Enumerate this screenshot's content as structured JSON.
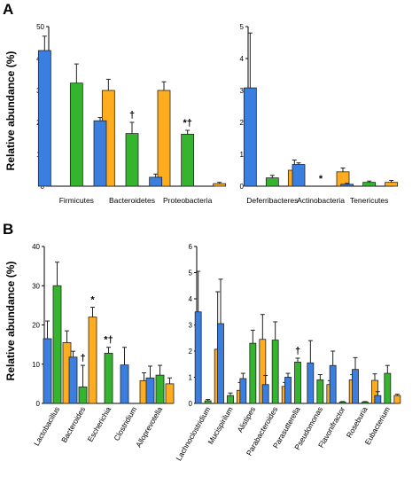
{
  "colors": {
    "blue": "#3a7fe0",
    "green": "#35b52d",
    "orange": "#ffad1f"
  },
  "panels": [
    {
      "letter": "A",
      "ylabel": "Relative abundance (%)"
    },
    {
      "letter": "B",
      "ylabel": "Relative abundance (%)"
    }
  ],
  "chart_data": [
    {
      "type": "bar",
      "panel": "A",
      "ylim": [
        0,
        50
      ],
      "yticks": [
        0,
        10,
        20,
        30,
        40,
        50
      ],
      "grid": false,
      "categories": [
        "Firmicutes",
        "Bacteroidetes",
        "Proteobacteria"
      ],
      "series": [
        {
          "color": "blue",
          "values": [
            42.5,
            20.5,
            2.8
          ],
          "errors": [
            4.5,
            1.0,
            1.0
          ]
        },
        {
          "color": "green",
          "values": [
            32.3,
            16.5,
            16.3
          ],
          "errors": [
            6.0,
            3.5,
            1.2
          ]
        },
        {
          "color": "orange",
          "values": [
            30.0,
            30.0,
            0.8
          ],
          "errors": [
            3.5,
            2.7,
            0.4
          ]
        }
      ],
      "annotations": [
        {
          "category": "Bacteroidetes",
          "series": 1,
          "text": "†"
        },
        {
          "category": "Proteobacteria",
          "series": 1,
          "text": "*†"
        }
      ]
    },
    {
      "type": "bar",
      "panel": "A",
      "ylim": [
        0,
        5
      ],
      "yticks": [
        0,
        1,
        2,
        3,
        4,
        5
      ],
      "grid": false,
      "categories": [
        "Deferribacteres",
        "Actinobacteria",
        "Tenericutes"
      ],
      "series": [
        {
          "color": "blue",
          "values": [
            3.08,
            0.68,
            0.06
          ],
          "errors": [
            1.72,
            0.05,
            0.03
          ]
        },
        {
          "color": "green",
          "values": [
            0.26,
            0.0,
            0.12
          ],
          "errors": [
            0.08,
            0.0,
            0.04
          ]
        },
        {
          "color": "orange",
          "values": [
            0.5,
            0.45,
            0.12
          ],
          "errors": [
            0.32,
            0.12,
            0.06
          ]
        }
      ],
      "annotations": [
        {
          "category": "Actinobacteria",
          "series": 1,
          "text": "*"
        }
      ]
    },
    {
      "type": "bar",
      "panel": "B",
      "ylim": [
        0,
        40
      ],
      "yticks": [
        0,
        10,
        20,
        30,
        40
      ],
      "grid": false,
      "categories": [
        "Lactobacillus",
        "Bacteroides",
        "Escherichia",
        "Clostridium",
        "Alloprevotella"
      ],
      "series": [
        {
          "color": "blue",
          "values": [
            16.5,
            11.8,
            0.0,
            9.8,
            6.5
          ],
          "errors": [
            4.5,
            1.5,
            0.0,
            4.5,
            3.0
          ]
        },
        {
          "color": "green",
          "values": [
            30.0,
            4.2,
            12.8,
            0.0,
            7.2
          ],
          "errors": [
            6.0,
            5.5,
            1.5,
            0.0,
            2.5
          ]
        },
        {
          "color": "orange",
          "values": [
            15.5,
            22.0,
            0.0,
            5.8,
            5.0
          ],
          "errors": [
            3.0,
            2.5,
            0.0,
            2.0,
            1.5
          ]
        }
      ],
      "annotations": [
        {
          "category": "Bacteroides",
          "series": 2,
          "text": "*"
        },
        {
          "category": "Bacteroides",
          "series": 1,
          "text": "†"
        },
        {
          "category": "Escherichia",
          "series": 1,
          "text": "*†"
        }
      ]
    },
    {
      "type": "bar",
      "panel": "B",
      "ylim": [
        0,
        6
      ],
      "yticks": [
        0,
        1,
        2,
        3,
        4,
        5,
        6
      ],
      "grid": false,
      "categories": [
        "Lachnoclostridium",
        "Mucispirilum",
        "Alistipes",
        "Parabacteroides",
        "Parasutterella",
        "Pseudomonas",
        "Flavonifractor",
        "Roseburia",
        "Eubacterium"
      ],
      "series": [
        {
          "color": "blue",
          "values": [
            3.5,
            3.05,
            0.95,
            0.72,
            1.0,
            1.55,
            1.45,
            1.3,
            0.3
          ],
          "errors": [
            1.55,
            1.7,
            0.2,
            0.35,
            0.15,
            0.85,
            0.55,
            0.45,
            0.15
          ]
        },
        {
          "color": "green",
          "values": [
            0.1,
            0.3,
            2.3,
            2.42,
            1.58,
            0.9,
            0.05,
            0.05,
            1.15
          ],
          "errors": [
            0.05,
            0.1,
            0.5,
            0.7,
            0.15,
            0.2,
            0.02,
            0.02,
            0.3
          ]
        },
        {
          "color": "orange",
          "values": [
            2.07,
            0.5,
            2.45,
            0.65,
            0.0,
            0.72,
            0.9,
            0.88,
            0.3
          ],
          "errors": [
            2.2,
            0.3,
            0.95,
            0.15,
            0.0,
            0.15,
            0.2,
            0.25,
            0.05
          ]
        }
      ],
      "annotations": [
        {
          "category": "Parasutterella",
          "series": 1,
          "text": "†"
        }
      ]
    }
  ]
}
